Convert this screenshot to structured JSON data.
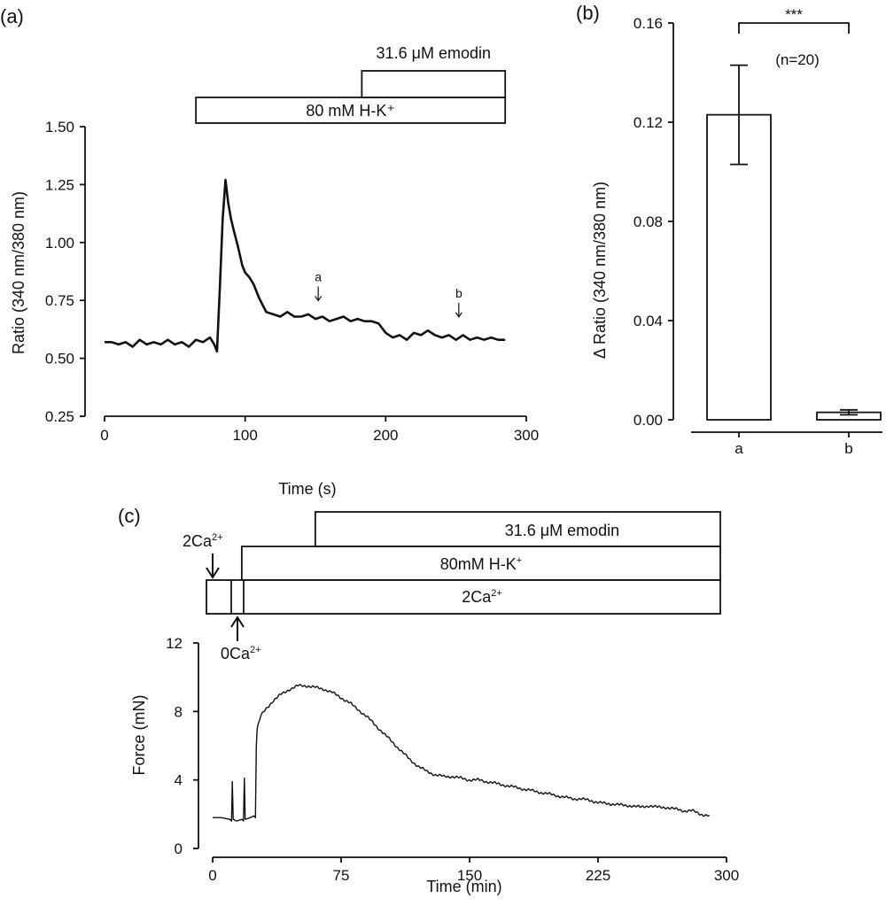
{
  "panel_labels": {
    "a": "(a)",
    "b": "(b)",
    "c": "(c)"
  },
  "chart_data": [
    {
      "panel": "a",
      "type": "line",
      "xlabel": "Time (s)",
      "ylabel": "Ratio (340 nm/380 nm)",
      "xlim": [
        0,
        300
      ],
      "ylim": [
        0.25,
        1.5
      ],
      "x_ticks": [
        0,
        100,
        200,
        300
      ],
      "y_ticks": [
        0.25,
        0.5,
        0.75,
        1.0,
        1.25,
        1.5
      ],
      "y_tick_labels": [
        "0.25",
        "0.50",
        "0.75",
        "1.00",
        "1.25",
        "1.50"
      ],
      "treatment_bars": [
        {
          "label": "80 mM  H-K⁺",
          "start": 65,
          "end": 285
        },
        {
          "label": "31.6 μM emodin",
          "start": 183,
          "end": 285
        }
      ],
      "markers": [
        {
          "label": "a",
          "x": 152,
          "y": 0.68
        },
        {
          "label": "b",
          "x": 252,
          "y": 0.61
        }
      ],
      "series": [
        {
          "x": [
            0,
            5,
            10,
            15,
            20,
            25,
            30,
            35,
            40,
            45,
            50,
            55,
            60,
            65,
            70,
            75,
            78,
            80,
            82,
            84,
            86,
            88,
            90,
            92,
            95,
            98,
            100,
            103,
            106,
            110,
            115,
            120,
            125,
            130,
            135,
            140,
            145,
            150,
            155,
            160,
            165,
            170,
            175,
            180,
            185,
            190,
            195,
            200,
            205,
            210,
            215,
            220,
            225,
            230,
            235,
            240,
            245,
            250,
            255,
            260,
            265,
            270,
            275,
            280,
            285
          ],
          "y": [
            0.57,
            0.57,
            0.56,
            0.57,
            0.55,
            0.58,
            0.56,
            0.57,
            0.56,
            0.58,
            0.56,
            0.57,
            0.55,
            0.58,
            0.57,
            0.59,
            0.56,
            0.53,
            0.8,
            1.1,
            1.27,
            1.17,
            1.1,
            1.05,
            0.98,
            0.9,
            0.87,
            0.85,
            0.82,
            0.76,
            0.7,
            0.69,
            0.68,
            0.7,
            0.68,
            0.68,
            0.69,
            0.67,
            0.68,
            0.66,
            0.67,
            0.68,
            0.66,
            0.67,
            0.66,
            0.66,
            0.65,
            0.61,
            0.59,
            0.6,
            0.58,
            0.61,
            0.6,
            0.62,
            0.6,
            0.59,
            0.6,
            0.58,
            0.6,
            0.58,
            0.59,
            0.58,
            0.59,
            0.58,
            0.58
          ]
        }
      ]
    },
    {
      "panel": "b",
      "type": "bar",
      "categories": [
        "a",
        "b"
      ],
      "values": [
        0.123,
        0.003
      ],
      "errors": [
        0.02,
        0.001
      ],
      "ylabel": "Δ Ratio (340 nm/380 nm)",
      "ylim": [
        0,
        0.16
      ],
      "y_ticks": [
        0.0,
        0.04,
        0.08,
        0.12,
        0.16
      ],
      "y_tick_labels": [
        "0.00",
        "0.04",
        "0.08",
        "0.12",
        "0.16"
      ],
      "significance": "***",
      "n_label": "(n=20)"
    },
    {
      "panel": "c",
      "type": "line",
      "xlabel": "Time (min)",
      "ylabel": "Force (mN)",
      "xlim": [
        0,
        300
      ],
      "ylim": [
        0,
        12
      ],
      "x_ticks": [
        0,
        75,
        150,
        225,
        300
      ],
      "y_ticks": [
        0,
        4,
        8,
        12
      ],
      "treatment_bars": [
        {
          "label": "31.6 μM emodin",
          "start": 62,
          "end": 297
        },
        {
          "label": "80mM H-K⁺",
          "start": 17,
          "end": 297
        },
        {
          "label": "2Ca²⁺",
          "start": 0,
          "end": 297,
          "inner_dividers": [
            12,
            19
          ]
        }
      ],
      "arrow_labels": {
        "top": "2Ca²⁺",
        "bottom": "0Ca²⁺"
      },
      "series": [
        {
          "x": [
            0,
            5,
            10,
            11,
            11.5,
            12,
            14,
            17,
            18,
            18.5,
            19,
            22,
            24,
            25,
            25.5,
            26,
            28,
            30,
            35,
            40,
            45,
            50,
            55,
            60,
            65,
            70,
            75,
            80,
            85,
            90,
            95,
            100,
            105,
            110,
            115,
            120,
            125,
            130,
            135,
            140,
            145,
            150,
            155,
            160,
            165,
            170,
            175,
            180,
            185,
            190,
            195,
            200,
            205,
            210,
            215,
            220,
            225,
            230,
            235,
            240,
            245,
            250,
            255,
            260,
            265,
            270,
            275,
            280,
            285,
            290
          ],
          "y": [
            1.8,
            1.8,
            1.7,
            1.6,
            3.9,
            1.7,
            1.6,
            1.7,
            1.6,
            4.1,
            1.7,
            1.8,
            1.9,
            1.8,
            6.0,
            7.0,
            7.7,
            8.0,
            8.6,
            9.0,
            9.3,
            9.5,
            9.5,
            9.4,
            9.3,
            9.1,
            8.8,
            8.5,
            8.1,
            7.7,
            7.2,
            6.7,
            6.2,
            5.7,
            5.2,
            4.8,
            4.5,
            4.3,
            4.2,
            4.2,
            4.1,
            4.0,
            4.0,
            3.9,
            3.8,
            3.7,
            3.6,
            3.5,
            3.4,
            3.3,
            3.2,
            3.1,
            3.0,
            2.9,
            2.9,
            2.8,
            2.7,
            2.6,
            2.6,
            2.5,
            2.5,
            2.4,
            2.5,
            2.4,
            2.4,
            2.3,
            2.2,
            2.2,
            2.0,
            1.9
          ]
        }
      ]
    }
  ]
}
